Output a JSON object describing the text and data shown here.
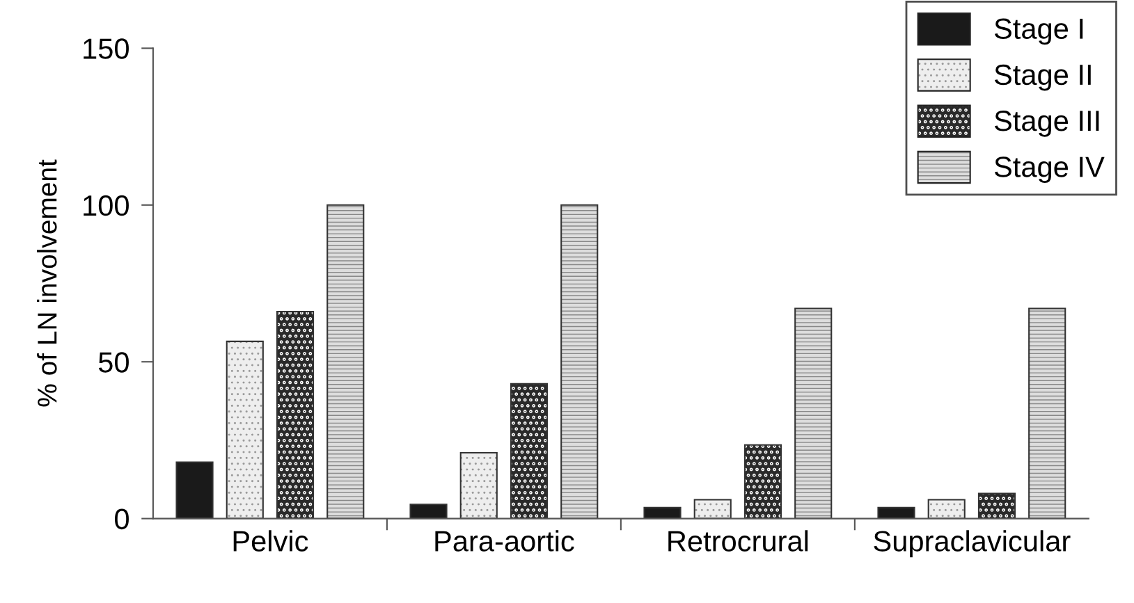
{
  "chart_data": {
    "type": "bar",
    "ylabel": "% of LN involvement",
    "categories": [
      "Pelvic",
      "Para-aortic",
      "Retrocrural",
      "Supraclavicular"
    ],
    "series": [
      {
        "name": "Stage I",
        "color": "#1a1a1a",
        "values": [
          18,
          4.5,
          3.5,
          3.5
        ]
      },
      {
        "name": "Stage II",
        "color": "#eeeeee",
        "values": [
          56.5,
          21,
          6,
          6
        ]
      },
      {
        "name": "Stage III",
        "color": "#2a2a2a",
        "values": [
          66,
          43,
          23.5,
          8
        ]
      },
      {
        "name": "Stage IV",
        "color": "#dddddd",
        "values": [
          100,
          100,
          67,
          67
        ]
      }
    ],
    "ylim": [
      0,
      150
    ],
    "yticks": [
      0,
      50,
      100,
      150
    ],
    "grid": false,
    "legend": "top right"
  }
}
